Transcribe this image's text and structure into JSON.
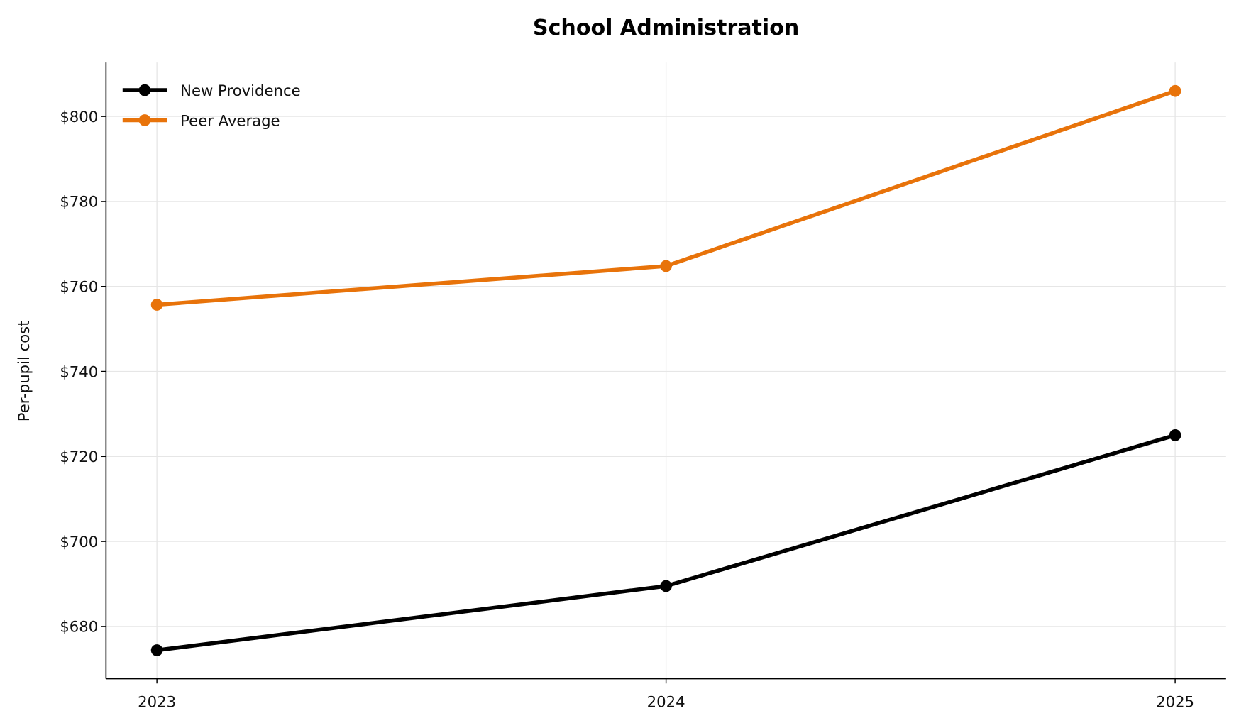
{
  "chart_data": {
    "type": "line",
    "title": "School Administration",
    "xlabel": "",
    "ylabel": "Per-pupil cost",
    "categories": [
      "2023",
      "2024",
      "2025"
    ],
    "x": [
      2023,
      2024,
      2025
    ],
    "xlim": [
      2022.9,
      2025.1
    ],
    "ylim": [
      667.7,
      812.7
    ],
    "yticks": [
      680,
      700,
      720,
      740,
      760,
      780,
      800
    ],
    "ytick_labels": [
      "$680",
      "$700",
      "$720",
      "$740",
      "$760",
      "$780",
      "$800"
    ],
    "grid": true,
    "legend_position": "top-left",
    "series": [
      {
        "name": "New Providence",
        "color": "#000000",
        "values": [
          674.4,
          689.5,
          725.0
        ]
      },
      {
        "name": "Peer Average",
        "color": "#E8730A",
        "values": [
          755.7,
          764.8,
          806.0
        ]
      }
    ]
  }
}
